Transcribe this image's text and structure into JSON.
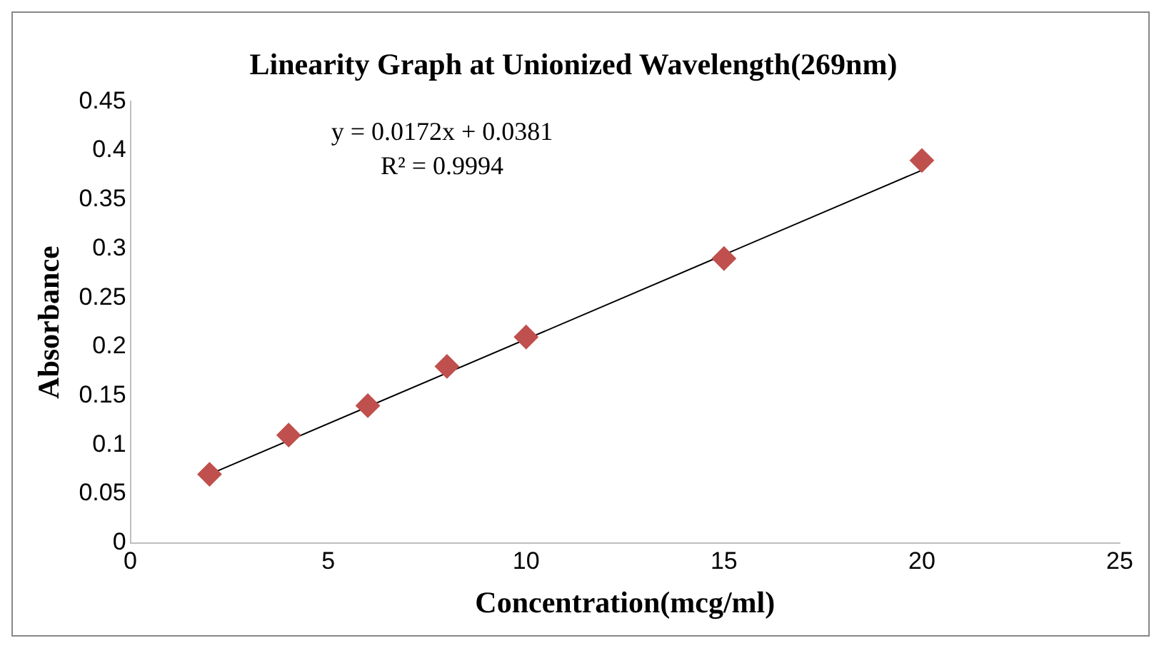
{
  "chart_data": {
    "type": "scatter",
    "title": "Linearity Graph at Unionized Wavelength(269nm)",
    "xlabel": "Concentration(mcg/ml)",
    "ylabel": "Absorbance",
    "series": [
      {
        "type": "scatter",
        "color": "#c0504d",
        "marker": "diamond",
        "x": [
          2,
          4,
          6,
          8,
          10,
          15,
          20
        ],
        "values": [
          0.07,
          0.11,
          0.14,
          0.18,
          0.21,
          0.29,
          0.39
        ]
      },
      {
        "type": "line",
        "color": "#000000",
        "marker": "none",
        "x": [
          2,
          20
        ],
        "values": [
          0.07,
          0.38
        ]
      }
    ],
    "xlim": [
      0,
      25
    ],
    "xticks": [
      0,
      5,
      10,
      15,
      20,
      25
    ],
    "ylim": [
      0,
      0.45
    ],
    "yticks": [
      0,
      0.05,
      0.1,
      0.15,
      0.2,
      0.25,
      0.3,
      0.35,
      0.4,
      0.45
    ],
    "annotations": [
      "y = 0.0172x + 0.0381",
      "R² = 0.9994"
    ],
    "grid": false
  }
}
